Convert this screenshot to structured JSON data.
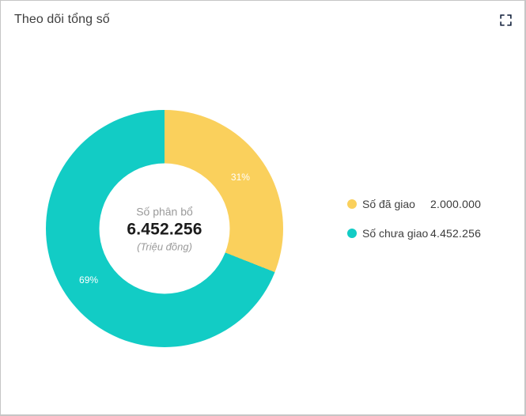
{
  "card": {
    "title": "Theo dõi tổng số"
  },
  "icons": {
    "fullscreen": "fullscreen-expand-corners"
  },
  "chart_data": {
    "type": "pie",
    "subtype": "donut",
    "categories": [
      "Số đã giao",
      "Số chưa giao"
    ],
    "values": [
      2000000,
      4452256
    ],
    "percent_labels": [
      "31%",
      "69%"
    ],
    "colors": [
      "#FAD05C",
      "#12CCC5"
    ],
    "start_angle_deg": 0,
    "direction": "clockwise",
    "inner_radius_ratio": 0.55,
    "center": {
      "label": "Số phân bổ",
      "value": "6.452.256",
      "unit": "(Triệu đồng)"
    },
    "legend": {
      "position": "right",
      "items": [
        {
          "label": "Số đã giao",
          "value": "2.000.000",
          "color": "#FAD05C"
        },
        {
          "label": "Số chưa giao",
          "value": "4.452.256",
          "color": "#12CCC5"
        }
      ]
    }
  }
}
